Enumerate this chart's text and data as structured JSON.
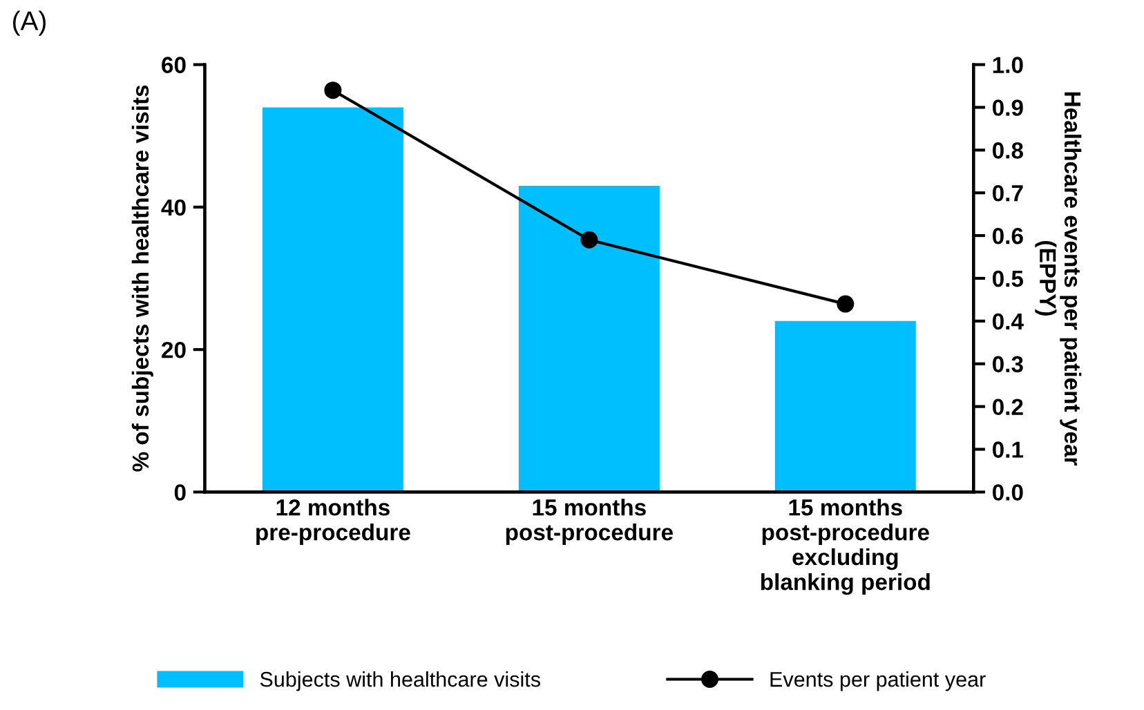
{
  "chart_data": {
    "type": "bar",
    "categories": [
      "12 months\npre-procedure",
      "15 months\npost-procedure",
      "15 months\npost-procedure\nexcluding\nblanking period"
    ],
    "ylabel": "% of subjects with healthcare visits",
    "y2label": "Healthcare events per patient year\n(EPPY)",
    "ylim": [
      0,
      60
    ],
    "yticks": [
      0,
      20,
      40,
      60
    ],
    "y2lim": [
      0,
      1.0
    ],
    "y2ticks": [
      {
        "value": 0,
        "label": "0.0"
      },
      {
        "value": 0.1,
        "label": "0.1"
      },
      {
        "value": 0.2,
        "label": "0.2"
      },
      {
        "value": 0.3,
        "label": "0.3"
      },
      {
        "value": 0.4,
        "label": "0.4"
      },
      {
        "value": 0.5,
        "label": "0.5"
      },
      {
        "value": 0.6,
        "label": "0.6"
      },
      {
        "value": 0.7,
        "label": "0.7"
      },
      {
        "value": 0.8,
        "label": "0.8"
      },
      {
        "value": 0.9,
        "label": "0.9"
      },
      {
        "value": 1.0,
        "label": "1.0"
      }
    ],
    "series": [
      {
        "name": "Subjects with healthcare visits",
        "color": "#00bfff",
        "values": [
          54,
          43,
          24
        ]
      },
      {
        "name": "Events per patient year",
        "type": "line",
        "axis": "y2",
        "color": "#000000",
        "marker": "circle",
        "values": [
          0.94,
          0.59,
          0.44
        ]
      }
    ],
    "annotations": [
      "(A)"
    ],
    "legend": "bottom",
    "grid": false
  }
}
